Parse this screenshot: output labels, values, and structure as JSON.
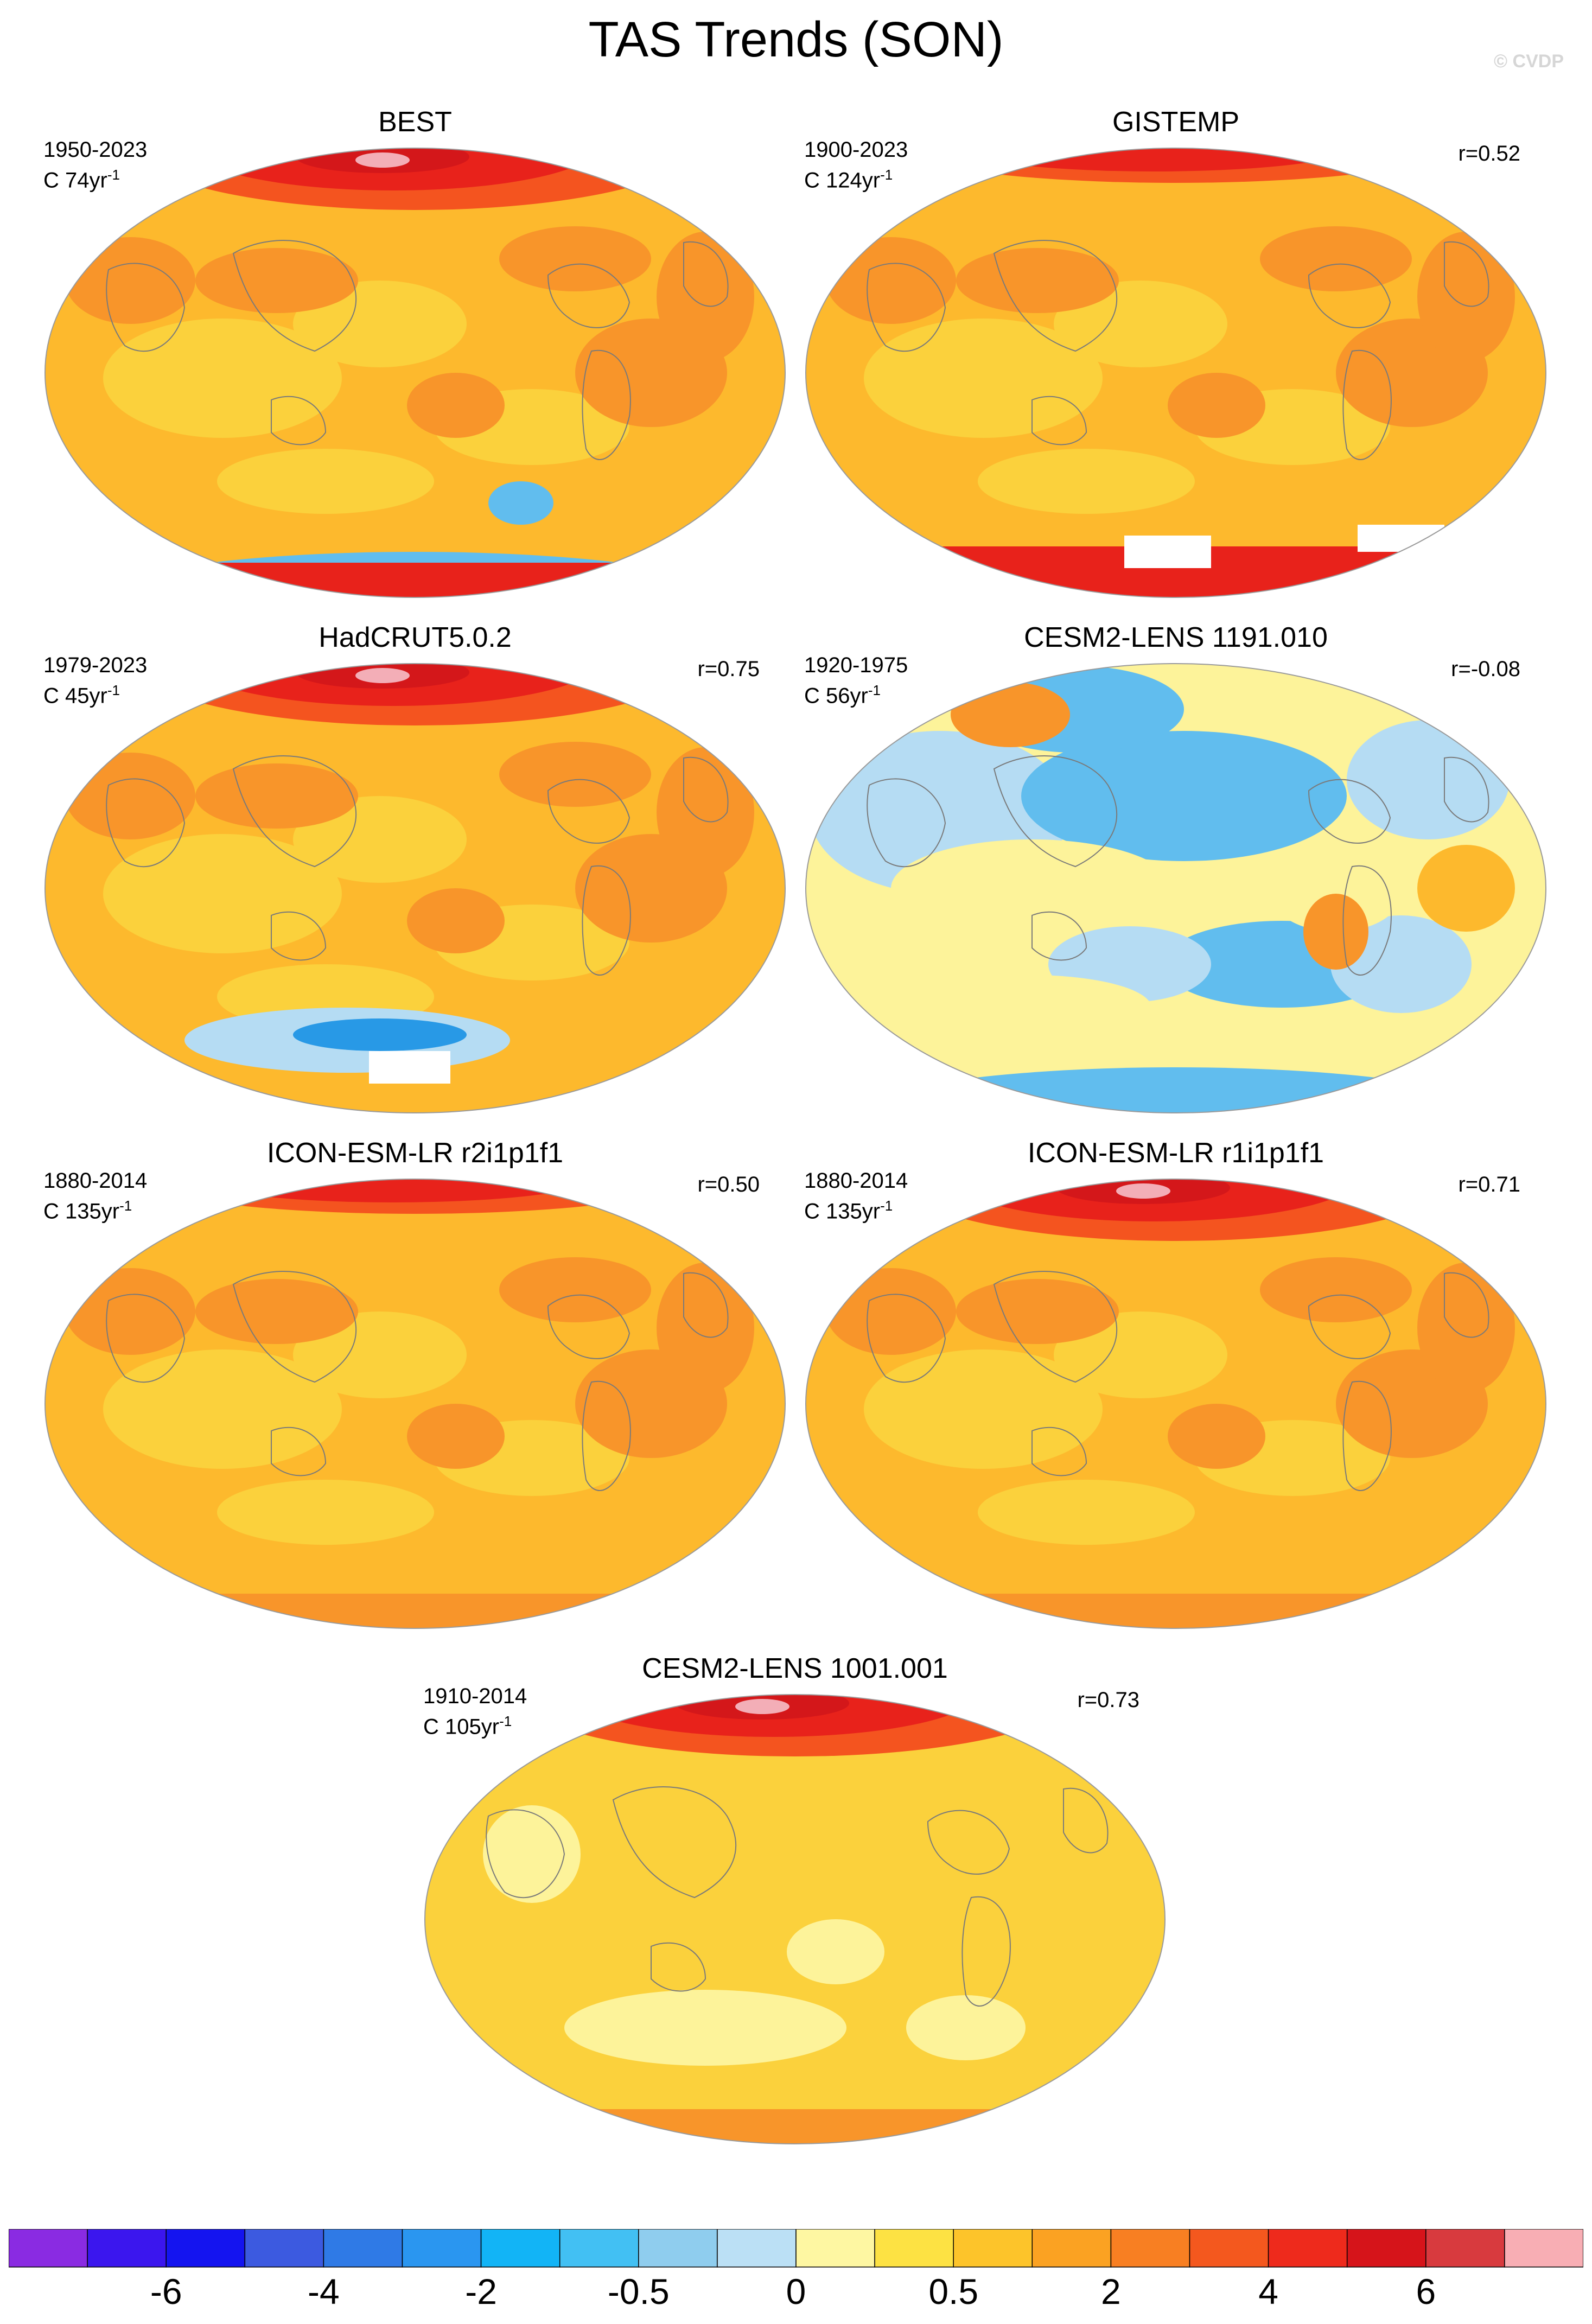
{
  "title": "TAS Trends (SON)",
  "watermark": "© CVDP",
  "palette": {
    "ocean_warm": "#fdb92d",
    "ocean_mid": "#fbd13c",
    "ocean_hot": "#f8952a",
    "land_hot": "#f4541f",
    "arctic": "#e8221b",
    "arctic_core": "#d4171a",
    "pink": "#f3aeb7",
    "cool_light": "#fdf39a",
    "cool_pale": "#b5dcf3",
    "cool_mid": "#61bdee",
    "cool_strong": "#2899e6",
    "missing": "#ffffff",
    "coast": "#7a7a7a"
  },
  "chart_data": [
    {
      "type": "map",
      "title": "BEST",
      "period": "1950-2023",
      "count_prefix": "C 74yr",
      "count_exp": "-1",
      "r": "",
      "theme": "warm",
      "arctic_intensity": "strong",
      "antarctic": "cool_band"
    },
    {
      "type": "map",
      "title": "GISTEMP",
      "period": "1900-2023",
      "count_prefix": "C 124yr",
      "count_exp": "-1",
      "r": "r=0.52",
      "theme": "warm",
      "arctic_intensity": "moderate",
      "antarctic": "missing_patches"
    },
    {
      "type": "map",
      "title": "HadCRUT5.0.2",
      "period": "1979-2023",
      "count_prefix": "C 45yr",
      "count_exp": "-1",
      "r": "r=0.75",
      "theme": "warm",
      "arctic_intensity": "strong",
      "antarctic": "missing_patch_cool"
    },
    {
      "type": "map",
      "title": "CESM2-LENS 1191.010",
      "period": "1920-1975",
      "count_prefix": "C 56yr",
      "count_exp": "-1",
      "r": "r=-0.08",
      "theme": "cool",
      "arctic_intensity": "none",
      "antarctic": "cool_band"
    },
    {
      "type": "map",
      "title": "ICON-ESM-LR r2i1p1f1",
      "period": "1880-2014",
      "count_prefix": "C 135yr",
      "count_exp": "-1",
      "r": "r=0.50",
      "theme": "warm",
      "arctic_intensity": "moderate",
      "antarctic": "warm_band"
    },
    {
      "type": "map",
      "title": "ICON-ESM-LR r1i1p1f1",
      "period": "1880-2014",
      "count_prefix": "C 135yr",
      "count_exp": "-1",
      "r": "r=0.71",
      "theme": "warm",
      "arctic_intensity": "strong",
      "antarctic": "warm_band"
    },
    {
      "type": "map",
      "title": "CESM2-LENS 1001.001",
      "period": "1910-2014",
      "count_prefix": "C 105yr",
      "count_exp": "-1",
      "r": "r=0.73",
      "theme": "warm_light",
      "arctic_intensity": "strong",
      "antarctic": "warm_band"
    }
  ],
  "colorbar": {
    "colors": [
      "#8a2be2",
      "#3b16ee",
      "#1414f0",
      "#3c5ae0",
      "#2f7ae6",
      "#2a96f0",
      "#12b4f6",
      "#42c0f3",
      "#8fcdee",
      "#bbe0f5",
      "#fef7a2",
      "#fde243",
      "#fdc42a",
      "#fba222",
      "#f87f22",
      "#f4581e",
      "#ee2a1c",
      "#d6141a",
      "#d83a3e",
      "#f8aeb4"
    ],
    "labels": [
      "-6",
      "-4",
      "-2",
      "-0.5",
      "0",
      "0.5",
      "2",
      "4",
      "6"
    ],
    "label_boundaries": [
      2,
      4,
      6,
      8,
      10,
      12,
      14,
      16,
      18
    ]
  }
}
